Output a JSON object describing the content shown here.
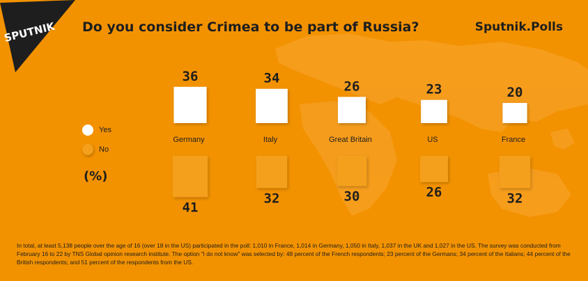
{
  "header": {
    "logo_text": "SPUTNIK",
    "title": "Do you consider Crimea to be part of Russia?",
    "brand": "Sputnik.Polls"
  },
  "legend": {
    "items": [
      {
        "label": "Yes",
        "color": "#ffffff"
      },
      {
        "label": "No",
        "color": "#f5a01c"
      }
    ],
    "unit": "(%)"
  },
  "chart_data": {
    "type": "bar",
    "categories": [
      "Germany",
      "Italy",
      "Great Britain",
      "US",
      "France"
    ],
    "series": [
      {
        "name": "Yes",
        "values": [
          36,
          34,
          26,
          23,
          20
        ]
      },
      {
        "name": "No",
        "values": [
          41,
          32,
          30,
          26,
          32
        ]
      }
    ],
    "legend": "left",
    "grid": false
  },
  "footnote": "In total, at least 5,138 people over the age of 16 (over 18 in the US) participated in the poll: 1,010 in France, 1,014 in Germany, 1,050 in Italy, 1,037 in the UK and 1,027 in the US. The survey was conducted from February 16 to 22 by TNS Global opinion research institute. The option \"I do not know\" was selected by: 48 percent of the French respondents; 23 percent of the Germans; 34 percent of the Italians; 44 percent of the British respondents; and 51 percent of the respondents from the US."
}
